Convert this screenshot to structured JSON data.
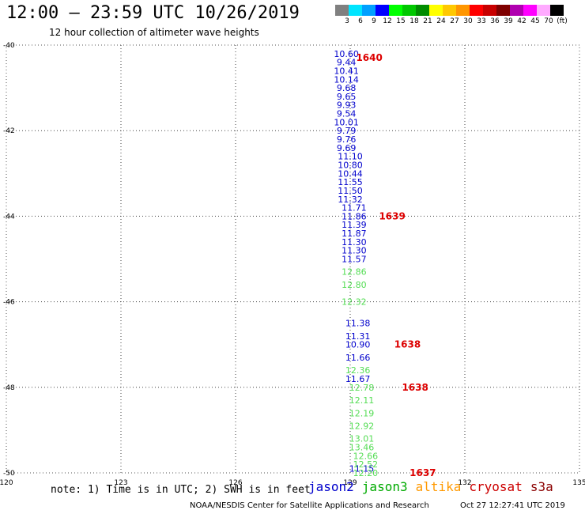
{
  "header": {
    "title": "12:00 – 23:59 UTC 10/26/2019",
    "subtitle": "12 hour collection of altimeter wave heights"
  },
  "colorbar": {
    "colors": [
      "#808080",
      "#00e5ff",
      "#00a0ff",
      "#0000ff",
      "#00ff00",
      "#00c800",
      "#008c00",
      "#ffff00",
      "#ffc800",
      "#ff9600",
      "#ff0000",
      "#c80000",
      "#7f0000",
      "#b000b0",
      "#ff00ff",
      "#ffaaff",
      "#000000"
    ],
    "labels": [
      "3",
      "6",
      "9",
      "12",
      "15",
      "18",
      "21",
      "24",
      "27",
      "30",
      "33",
      "36",
      "39",
      "42",
      "45",
      "70",
      "(ft)"
    ]
  },
  "axes": {
    "lat_labels": [
      "-40",
      "-42",
      "-44",
      "-46",
      "-48",
      "-50"
    ],
    "lon_labels": [
      "120",
      "123",
      "126",
      "129",
      "132",
      "135"
    ]
  },
  "chart_data": {
    "type": "scatter",
    "lon_range": [
      120,
      135
    ],
    "lat_range": [
      -50,
      -40
    ],
    "grid": true,
    "passes": [
      {
        "satellite": "jason2",
        "color": "#0000cc",
        "points": [
          {
            "lon": 128.9,
            "lat": -40.2,
            "v": "10.60"
          },
          {
            "lon": 128.9,
            "lat": -40.4,
            "v": "9.44"
          },
          {
            "lon": 128.9,
            "lat": -40.6,
            "v": "10.41"
          },
          {
            "lon": 128.9,
            "lat": -40.8,
            "v": "10.14"
          },
          {
            "lon": 128.9,
            "lat": -41.0,
            "v": "9.68"
          },
          {
            "lon": 128.9,
            "lat": -41.2,
            "v": "9.65"
          },
          {
            "lon": 128.9,
            "lat": -41.4,
            "v": "9.93"
          },
          {
            "lon": 128.9,
            "lat": -41.6,
            "v": "9.54"
          },
          {
            "lon": 128.9,
            "lat": -41.8,
            "v": "10.01"
          },
          {
            "lon": 128.9,
            "lat": -42.0,
            "v": "9.79"
          },
          {
            "lon": 128.9,
            "lat": -42.2,
            "v": "9.76"
          },
          {
            "lon": 128.9,
            "lat": -42.4,
            "v": "9.69"
          },
          {
            "lon": 129.0,
            "lat": -42.6,
            "v": "11.10"
          },
          {
            "lon": 129.0,
            "lat": -42.8,
            "v": "10.80"
          },
          {
            "lon": 129.0,
            "lat": -43.0,
            "v": "10.44"
          },
          {
            "lon": 129.0,
            "lat": -43.2,
            "v": "11.55"
          },
          {
            "lon": 129.0,
            "lat": -43.4,
            "v": "11.50"
          },
          {
            "lon": 129.0,
            "lat": -43.6,
            "v": "11.32"
          },
          {
            "lon": 129.1,
            "lat": -43.8,
            "v": "11.71"
          },
          {
            "lon": 129.1,
            "lat": -44.0,
            "v": "11.86"
          },
          {
            "lon": 129.1,
            "lat": -44.2,
            "v": "11.39"
          },
          {
            "lon": 129.1,
            "lat": -44.4,
            "v": "11.87"
          },
          {
            "lon": 129.1,
            "lat": -44.6,
            "v": "11.30"
          },
          {
            "lon": 129.1,
            "lat": -44.8,
            "v": "11.30"
          },
          {
            "lon": 129.1,
            "lat": -45.0,
            "v": "11.57"
          },
          {
            "lon": 129.2,
            "lat": -46.5,
            "v": "11.38"
          },
          {
            "lon": 129.2,
            "lat": -46.8,
            "v": "11.31"
          },
          {
            "lon": 129.2,
            "lat": -47.0,
            "v": "10.90"
          },
          {
            "lon": 129.2,
            "lat": -47.3,
            "v": "11.66"
          },
          {
            "lon": 129.2,
            "lat": -47.8,
            "v": "11.67"
          },
          {
            "lon": 129.3,
            "lat": -49.9,
            "v": "11.15"
          }
        ]
      },
      {
        "satellite": "jason3",
        "color": "#55dd55",
        "points": [
          {
            "lon": 129.1,
            "lat": -45.3,
            "v": "12.86"
          },
          {
            "lon": 129.1,
            "lat": -45.6,
            "v": "12.80"
          },
          {
            "lon": 129.1,
            "lat": -46.0,
            "v": "12.32"
          },
          {
            "lon": 129.2,
            "lat": -47.6,
            "v": "12.36"
          },
          {
            "lon": 129.3,
            "lat": -48.0,
            "v": "12.78"
          },
          {
            "lon": 129.3,
            "lat": -48.3,
            "v": "12.11"
          },
          {
            "lon": 129.3,
            "lat": -48.6,
            "v": "12.19"
          },
          {
            "lon": 129.3,
            "lat": -48.9,
            "v": "12.92"
          },
          {
            "lon": 129.3,
            "lat": -49.2,
            "v": "13.01"
          },
          {
            "lon": 129.3,
            "lat": -49.4,
            "v": "13.46"
          },
          {
            "lon": 129.4,
            "lat": -49.6,
            "v": "12.66"
          },
          {
            "lon": 129.4,
            "lat": -49.8,
            "v": "12.52"
          },
          {
            "lon": 129.4,
            "lat": -50.0,
            "v": "12.20"
          }
        ]
      }
    ],
    "time_labels": [
      {
        "lon": 129.5,
        "lat": -40.3,
        "text": "1640"
      },
      {
        "lon": 130.1,
        "lat": -44.0,
        "text": "1639"
      },
      {
        "lon": 130.5,
        "lat": -47.0,
        "text": "1638"
      },
      {
        "lon": 130.7,
        "lat": -48.0,
        "text": "1638"
      },
      {
        "lon": 130.9,
        "lat": -50.0,
        "text": "1637"
      }
    ]
  },
  "footer": {
    "note": "note: 1) Time is in UTC; 2) SWH is in feet",
    "legend": [
      {
        "name": "jason2",
        "color": "#0000cc"
      },
      {
        "name": "jason3",
        "color": "#00aa00"
      },
      {
        "name": "altika",
        "color": "#ff9900"
      },
      {
        "name": "cryosat",
        "color": "#cc0000"
      },
      {
        "name": "s3a",
        "color": "#8b0000"
      }
    ],
    "credit": "NOAA/NESDIS Center for Satellite Applications and Research",
    "timestamp": "Oct 27 12:27:41 UTC 2019"
  }
}
